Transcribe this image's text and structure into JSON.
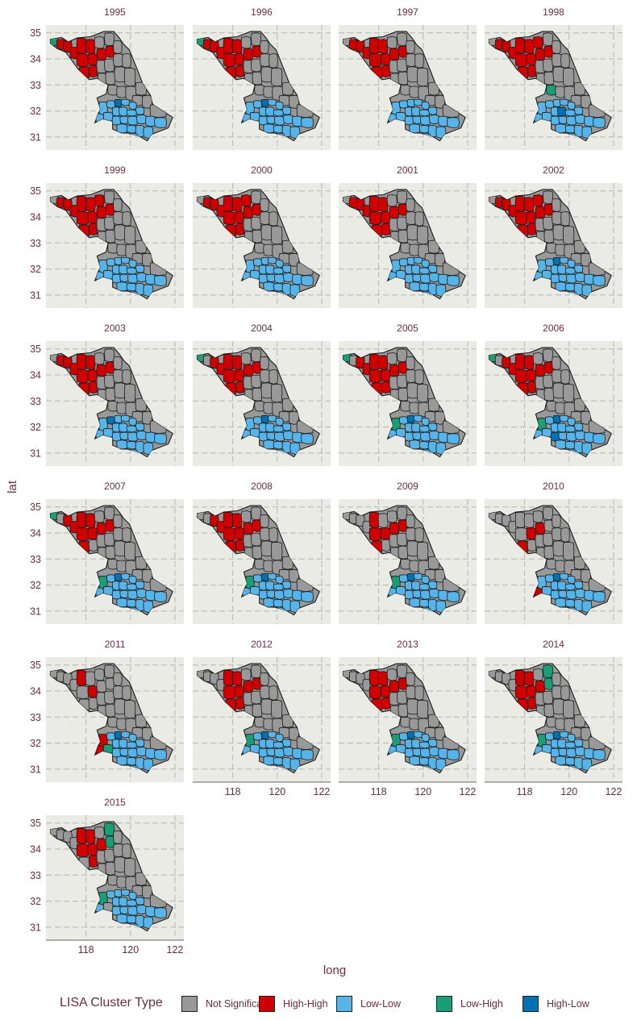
{
  "chart_data": {
    "type": "choropleth-facet",
    "title": "",
    "xlabel": "long",
    "ylabel": "lat",
    "x_ticks": [
      118,
      120,
      122
    ],
    "y_ticks": [
      31,
      32,
      33,
      34,
      35
    ],
    "xlim": [
      116.2,
      122.4
    ],
    "ylim": [
      30.5,
      35.3
    ],
    "legend": {
      "title": "LISA Cluster Type",
      "placement": "bottom",
      "entries": [
        {
          "label": "Not Significant",
          "color": "#999999"
        },
        {
          "label": "High-High",
          "color": "#d00000"
        },
        {
          "label": "Low-Low",
          "color": "#56b4e9"
        },
        {
          "label": "Low-High",
          "color": "#1a9e77"
        },
        {
          "label": "High-Low",
          "color": "#0072b2"
        }
      ]
    },
    "panels": [
      {
        "year": "1995",
        "High-High": 11,
        "Low-High": 1,
        "High-Low": 1,
        "Low-Low": 22
      },
      {
        "year": "1996",
        "High-High": 11,
        "Low-High": 1,
        "High-Low": 1,
        "Low-Low": 22
      },
      {
        "year": "1997",
        "High-High": 11,
        "Low-High": 0,
        "High-Low": 0,
        "Low-Low": 22
      },
      {
        "year": "1998",
        "High-High": 12,
        "Low-High": 1,
        "High-Low": 1,
        "Low-Low": 22
      },
      {
        "year": "1999",
        "High-High": 12,
        "Low-High": 0,
        "High-Low": 0,
        "Low-Low": 22
      },
      {
        "year": "2000",
        "High-High": 12,
        "Low-High": 0,
        "High-Low": 0,
        "Low-Low": 22
      },
      {
        "year": "2001",
        "High-High": 11,
        "Low-High": 0,
        "High-Low": 0,
        "Low-Low": 22
      },
      {
        "year": "2002",
        "High-High": 12,
        "Low-High": 0,
        "High-Low": 1,
        "Low-Low": 22
      },
      {
        "year": "2003",
        "High-High": 11,
        "Low-High": 0,
        "High-Low": 1,
        "Low-Low": 22
      },
      {
        "year": "2004",
        "High-High": 10,
        "Low-High": 1,
        "High-Low": 1,
        "Low-Low": 22
      },
      {
        "year": "2005",
        "High-High": 10,
        "Low-High": 2,
        "High-Low": 1,
        "Low-Low": 22
      },
      {
        "year": "2006",
        "High-High": 10,
        "Low-High": 2,
        "High-Low": 2,
        "Low-Low": 22
      },
      {
        "year": "2007",
        "High-High": 9,
        "Low-High": 2,
        "High-Low": 1,
        "Low-Low": 22
      },
      {
        "year": "2008",
        "High-High": 10,
        "Low-High": 1,
        "High-Low": 1,
        "Low-Low": 22
      },
      {
        "year": "2009",
        "High-High": 6,
        "Low-High": 1,
        "High-Low": 1,
        "Low-Low": 22
      },
      {
        "year": "2010",
        "High-High": 4,
        "Low-High": 0,
        "High-Low": 1,
        "Low-Low": 22
      },
      {
        "year": "2011",
        "High-High": 4,
        "Low-High": 1,
        "High-Low": 1,
        "Low-Low": 22
      },
      {
        "year": "2012",
        "High-High": 8,
        "Low-High": 1,
        "High-Low": 1,
        "Low-Low": 22
      },
      {
        "year": "2013",
        "High-High": 8,
        "Low-High": 1,
        "High-Low": 1,
        "Low-Low": 22
      },
      {
        "year": "2014",
        "High-High": 7,
        "Low-High": 3,
        "High-Low": 1,
        "Low-Low": 22
      },
      {
        "year": "2015",
        "High-High": 6,
        "Low-High": 3,
        "High-Low": 0,
        "Low-Low": 16
      }
    ]
  }
}
